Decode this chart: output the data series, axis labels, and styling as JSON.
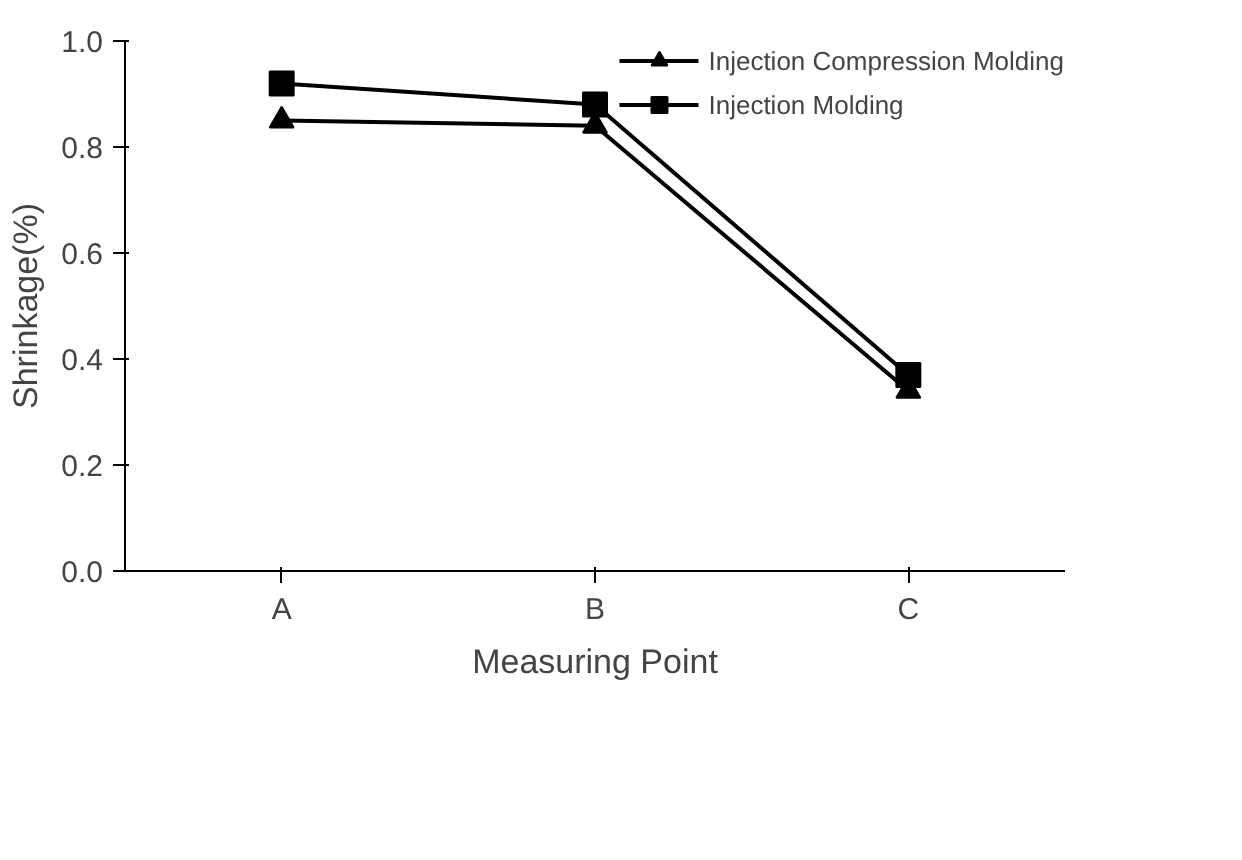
{
  "chart_data": {
    "type": "line",
    "xlabel": "Measuring Point",
    "ylabel": "Shrinkage(%)",
    "categories": [
      "A",
      "B",
      "C"
    ],
    "series": [
      {
        "name": "Injection Compression Molding",
        "color": "#000000",
        "marker": "triangle",
        "values": [
          0.85,
          0.84,
          0.34
        ]
      },
      {
        "name": "Injection Molding",
        "color": "#000000",
        "marker": "square",
        "values": [
          0.92,
          0.88,
          0.37
        ]
      }
    ],
    "ylim": [
      0,
      1.0
    ],
    "yticks": [
      {
        "value": 0,
        "label": "0.0"
      },
      {
        "value": 0.2,
        "label": "0.2"
      },
      {
        "value": 0.4,
        "label": "0.4"
      },
      {
        "value": 0.6,
        "label": "0.6"
      },
      {
        "value": 0.8,
        "label": "0.8"
      },
      {
        "value": 1.0,
        "label": "1.0"
      }
    ],
    "grid": false,
    "legend": "top right"
  }
}
